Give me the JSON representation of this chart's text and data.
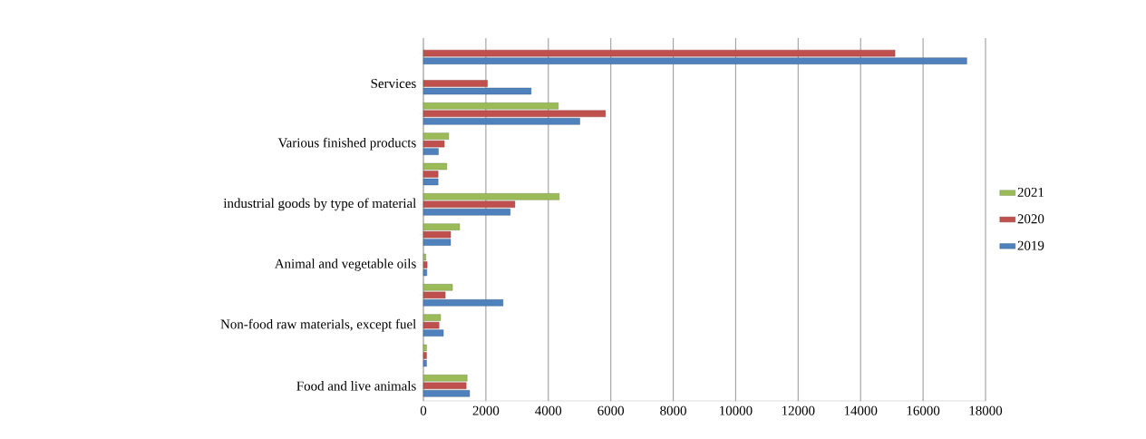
{
  "chart_data": {
    "type": "bar",
    "orientation": "horizontal",
    "categories": [
      null,
      "Services",
      null,
      "Various finished products",
      null,
      "industrial goods by type of material",
      null,
      "Animal and vegetable oils",
      null,
      "Non-food raw materials, except fuel",
      null,
      "Food and live animals"
    ],
    "series": [
      {
        "name": "2021",
        "color": "#9bbb59",
        "values": [
          null,
          null,
          4320,
          810,
          750,
          4350,
          1160,
          80,
          930,
          550,
          100,
          1400
        ]
      },
      {
        "name": "2020",
        "color": "#c0504d",
        "values": [
          15100,
          2050,
          5830,
          670,
          470,
          2930,
          870,
          120,
          700,
          500,
          100,
          1370
        ]
      },
      {
        "name": "2019",
        "color": "#4f81bd",
        "values": [
          17400,
          3450,
          5010,
          480,
          470,
          2780,
          870,
          110,
          2550,
          640,
          100,
          1480
        ]
      }
    ],
    "xlim": [
      0,
      18000
    ],
    "xticks": [
      0,
      2000,
      4000,
      6000,
      8000,
      10000,
      12000,
      14000,
      16000,
      18000
    ],
    "grid": "x",
    "legend": "right"
  }
}
